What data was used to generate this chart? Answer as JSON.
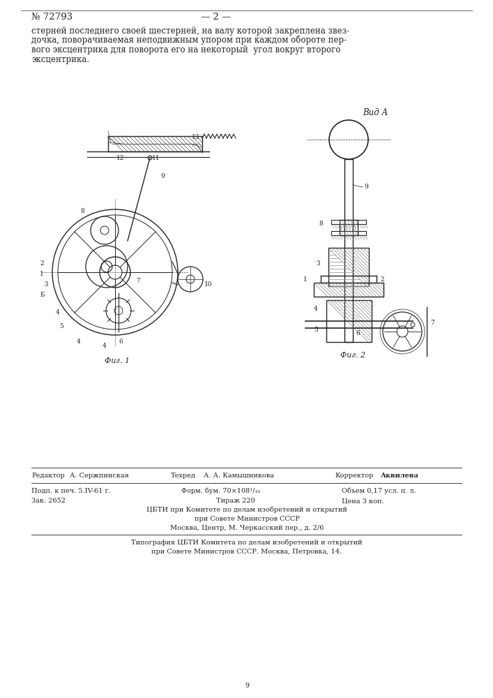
{
  "bg_color": "#ffffff",
  "page_number": "№ 72793",
  "page_num2": "— 2 —",
  "body_text_lines": [
    "стерней последнего своей шестерней, на валу которой закреплена звез-",
    "дочка, поворачиваемая неподвижным упором при каждом обороте пер-",
    "вого эксцентрика для поворота его на некоторый  угол вокруг второго",
    "эксцентрика."
  ],
  "editor_label": "Редактор",
  "editor_name": "А. Сержпинская",
  "techred_label": "Техред",
  "techred_name": "А. А. Камышникова",
  "corrector_label": "Корректор",
  "corrector_name": "Аквилева",
  "podp_line": "Подп. к печ. 5.IV-61 г.",
  "form_line": "Форм. бум. 70×108¹/₁₆",
  "objem_line": "Объем 0,17 усл. п. л.",
  "zak_line": "Зак. 2652",
  "tirazh_line": "Тираж 220",
  "cena_line": "Цена 3 коп.",
  "org_line1": "ЦБТИ при Комитете по делам изобретений и открытий",
  "org_line2": "при Совете Министров СССР",
  "org_line3": "Москва, Центр, М. Черкасский пер., д. 2/6",
  "typo_line1": "Типография ЦБТИ Комитета по делам изобретений и открытий",
  "typo_line2": "при Совете Министров СССР. Москва, Петровка, 14.",
  "page_num_bottom": "9",
  "lc": "#222222",
  "tc": "#222222"
}
